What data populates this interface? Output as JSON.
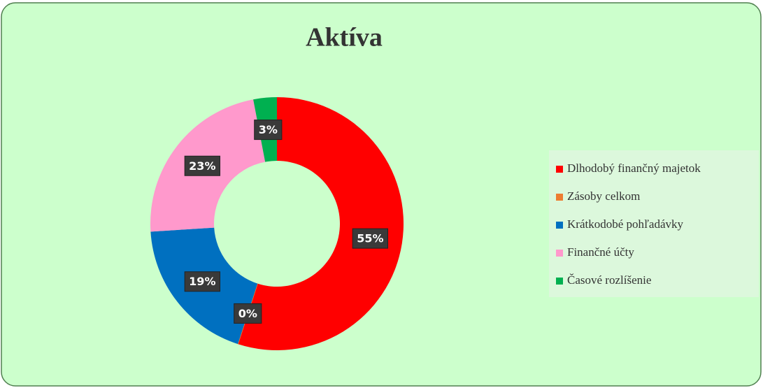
{
  "chart_data": {
    "type": "pie",
    "title": "Aktíva",
    "categories": [
      "Dlhodobý finančný majetok",
      "Zásoby celkom",
      "Krátkodobé pohľadávky",
      "Finančné účty",
      "Časové rozlíšenie"
    ],
    "values": [
      55,
      0,
      19,
      23,
      3
    ],
    "value_labels": [
      "55%",
      "0%",
      "19%",
      "23%",
      "3%"
    ],
    "colors": [
      "#ff0000",
      "#ed7d31",
      "#0070c0",
      "#ff99cc",
      "#00b050"
    ],
    "legend": "right"
  }
}
